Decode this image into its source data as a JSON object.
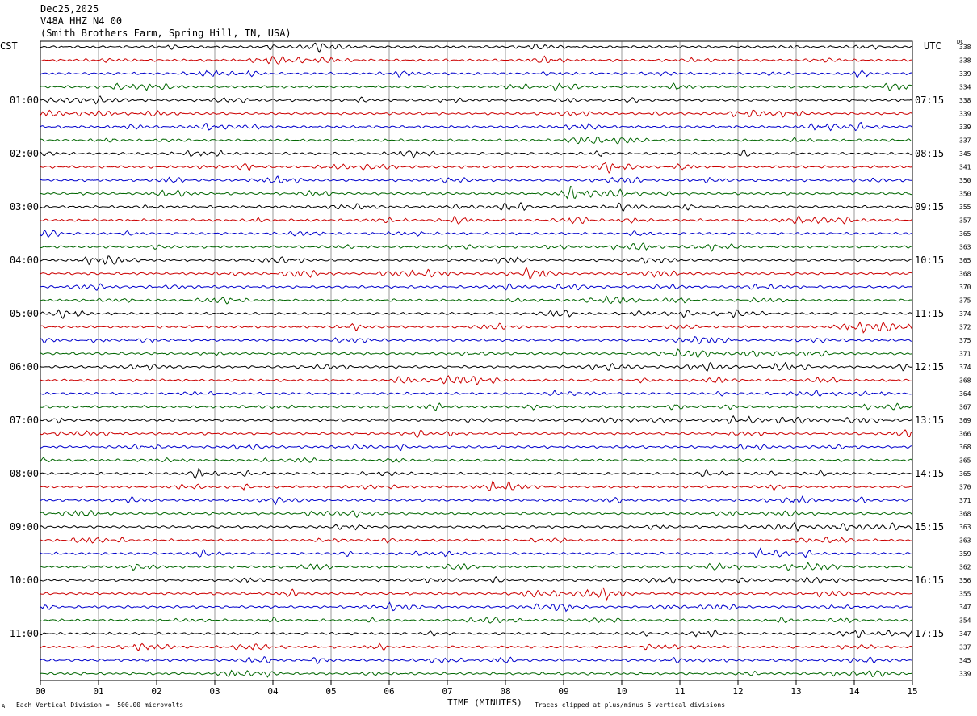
{
  "header": {
    "date": "Dec25,2025",
    "station": "V48A HHZ N4 00",
    "location": "(Smith Brothers Farm, Spring Hill, TN, USA)"
  },
  "left_zone_label": "CST",
  "right_zone_label": "UTC",
  "dc_label": "DC",
  "footer": {
    "mark": "A",
    "scale_note": "Each Vertical Division =  500.00 microvolts",
    "clip_note": "Traces clipped at plus/minus 5 vertical divisions"
  },
  "colors": {
    "trace_cycle": [
      "#000000",
      "#cc0000",
      "#0000cc",
      "#006600"
    ],
    "grid": "#000000",
    "background": "#ffffff"
  },
  "chart_data": {
    "type": "line",
    "title": "",
    "xlabel": "TIME (MINUTES)",
    "ylabel": "",
    "xlim": [
      0,
      15
    ],
    "x_ticks": [
      "00",
      "01",
      "02",
      "03",
      "04",
      "05",
      "06",
      "07",
      "08",
      "09",
      "10",
      "11",
      "12",
      "13",
      "14",
      "15"
    ],
    "rows_per_hour": 4,
    "row_count": 48,
    "left_hour_labels": [
      {
        "row": 4,
        "label": "01:00"
      },
      {
        "row": 8,
        "label": "02:00"
      },
      {
        "row": 12,
        "label": "03:00"
      },
      {
        "row": 16,
        "label": "04:00"
      },
      {
        "row": 20,
        "label": "05:00"
      },
      {
        "row": 24,
        "label": "06:00"
      },
      {
        "row": 28,
        "label": "07:00"
      },
      {
        "row": 32,
        "label": "08:00"
      },
      {
        "row": 36,
        "label": "09:00"
      },
      {
        "row": 40,
        "label": "10:00"
      },
      {
        "row": 44,
        "label": "11:00"
      }
    ],
    "right_hour_labels": [
      {
        "row": 4,
        "label": "07:15"
      },
      {
        "row": 8,
        "label": "08:15"
      },
      {
        "row": 12,
        "label": "09:15"
      },
      {
        "row": 16,
        "label": "10:15"
      },
      {
        "row": 20,
        "label": "11:15"
      },
      {
        "row": 24,
        "label": "12:15"
      },
      {
        "row": 28,
        "label": "13:15"
      },
      {
        "row": 32,
        "label": "14:15"
      },
      {
        "row": 36,
        "label": "15:15"
      },
      {
        "row": 40,
        "label": "16:15"
      },
      {
        "row": 44,
        "label": "17:15"
      }
    ],
    "dc_offsets": [
      "338",
      "338",
      "339",
      "334",
      "338",
      "339",
      "339",
      "337",
      "345",
      "341",
      "350",
      "350",
      "355",
      "357",
      "365",
      "363",
      "365",
      "368",
      "370",
      "375",
      "374",
      "372",
      "375",
      "371",
      "374",
      "368",
      "364",
      "367",
      "369",
      "366",
      "368",
      "365",
      "365",
      "370",
      "371",
      "368",
      "363",
      "363",
      "359",
      "362",
      "356",
      "355",
      "347",
      "354",
      "347",
      "337",
      "345",
      "339"
    ],
    "grid": true
  }
}
